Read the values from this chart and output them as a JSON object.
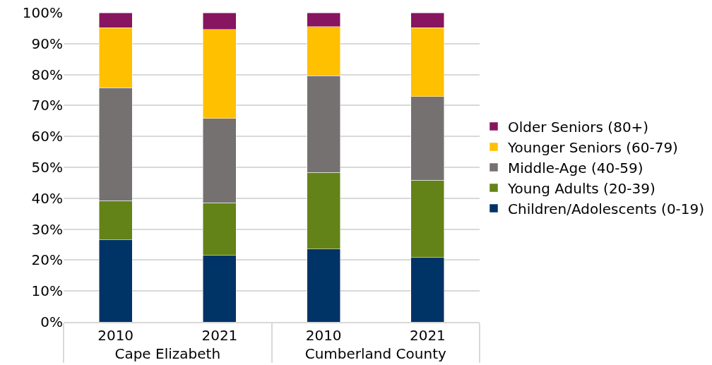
{
  "chart_data": {
    "type": "bar",
    "stacked": true,
    "categories": [
      "2010",
      "2021",
      "2010",
      "2021"
    ],
    "annotations": [
      "Cape Elizabeth",
      "Cumberland County"
    ],
    "series": [
      {
        "name": "Children/Adolescents (0-19)",
        "color": "#003366",
        "values": [
          26.5,
          21.5,
          23.6,
          20.8
        ]
      },
      {
        "name": "Young Adults (20-39)",
        "color": "#638218",
        "values": [
          12.7,
          17.0,
          24.8,
          25.0
        ]
      },
      {
        "name": "Middle-Age (40-59)",
        "color": "#767171",
        "values": [
          36.5,
          27.3,
          31.2,
          27.1
        ]
      },
      {
        "name": "Younger Seniors (60-79)",
        "color": "#ffc000",
        "values": [
          19.4,
          28.8,
          15.9,
          22.2
        ]
      },
      {
        "name": "Older Seniors (80+)",
        "color": "#87155f",
        "values": [
          4.9,
          5.4,
          4.5,
          4.9
        ]
      }
    ],
    "ylim": [
      0,
      100
    ],
    "yticks": [
      {
        "value": 0,
        "label": "0%"
      },
      {
        "value": 10,
        "label": "10%"
      },
      {
        "value": 20,
        "label": "20%"
      },
      {
        "value": 30,
        "label": "30%"
      },
      {
        "value": 40,
        "label": "40%"
      },
      {
        "value": 50,
        "label": "50%"
      },
      {
        "value": 60,
        "label": "60%"
      },
      {
        "value": 70,
        "label": "70%"
      },
      {
        "value": 80,
        "label": "80%"
      },
      {
        "value": 90,
        "label": "90%"
      },
      {
        "value": 100,
        "label": "100%"
      }
    ],
    "grid": "y",
    "legend": "right"
  }
}
